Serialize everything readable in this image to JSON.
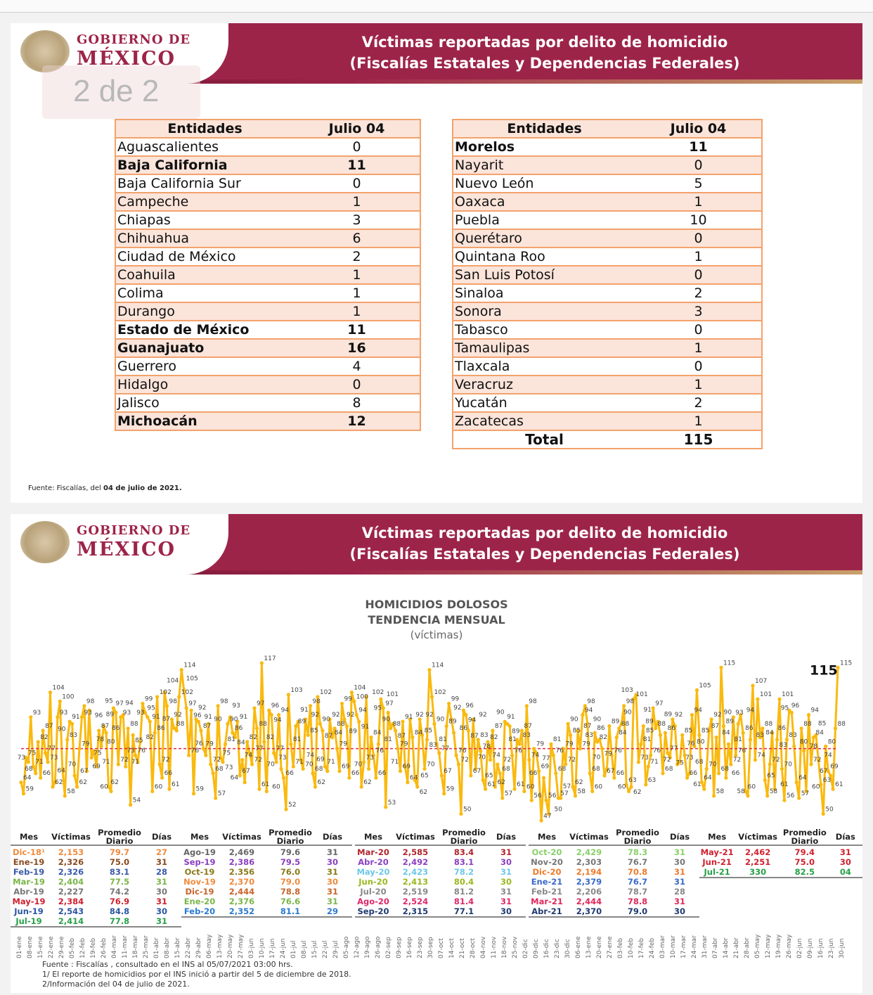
{
  "header": {
    "logo_line1": "GOBIERNO DE",
    "logo_line2": "MÉXICO",
    "title_line1": "Víctimas reportadas por delito de homicidio",
    "title_line2": "(Fiscalías Estatales y Dependencias Federales)"
  },
  "pager": "2 de 2",
  "colors": {
    "brand": "#9d2449",
    "table_border": "#f3a26c",
    "table_fill": "#fbe4da",
    "line": "#f9b90f",
    "mean": "#e0284a"
  },
  "left_table": {
    "headers": [
      "Entidades",
      "Julio 04"
    ],
    "rows": [
      {
        "name": "Aguascalientes",
        "value": "0",
        "bold": false
      },
      {
        "name": "Baja California",
        "value": "11",
        "bold": true
      },
      {
        "name": "Baja California Sur",
        "value": "0",
        "bold": false
      },
      {
        "name": "Campeche",
        "value": "1",
        "bold": false
      },
      {
        "name": "Chiapas",
        "value": "3",
        "bold": false
      },
      {
        "name": "Chihuahua",
        "value": "6",
        "bold": false
      },
      {
        "name": "Ciudad de México",
        "value": "2",
        "bold": false
      },
      {
        "name": "Coahuila",
        "value": "1",
        "bold": false
      },
      {
        "name": "Colima",
        "value": "1",
        "bold": false
      },
      {
        "name": "Durango",
        "value": "1",
        "bold": false
      },
      {
        "name": "Estado de México",
        "value": "11",
        "bold": true
      },
      {
        "name": "Guanajuato",
        "value": "16",
        "bold": true
      },
      {
        "name": "Guerrero",
        "value": "4",
        "bold": false
      },
      {
        "name": "Hidalgo",
        "value": "0",
        "bold": false
      },
      {
        "name": "Jalisco",
        "value": "8",
        "bold": false
      },
      {
        "name": "Michoacán",
        "value": "12",
        "bold": true
      }
    ]
  },
  "right_table": {
    "headers": [
      "Entidades",
      "Julio 04"
    ],
    "rows": [
      {
        "name": "Morelos",
        "value": "11",
        "bold": true
      },
      {
        "name": "Nayarit",
        "value": "0",
        "bold": false
      },
      {
        "name": "Nuevo León",
        "value": "5",
        "bold": false
      },
      {
        "name": "Oaxaca",
        "value": "1",
        "bold": false
      },
      {
        "name": "Puebla",
        "value": "10",
        "bold": false
      },
      {
        "name": "Querétaro",
        "value": "0",
        "bold": false
      },
      {
        "name": "Quintana Roo",
        "value": "1",
        "bold": false
      },
      {
        "name": "San Luis Potosí",
        "value": "0",
        "bold": false
      },
      {
        "name": "Sinaloa",
        "value": "2",
        "bold": false
      },
      {
        "name": "Sonora",
        "value": "3",
        "bold": false
      },
      {
        "name": "Tabasco",
        "value": "0",
        "bold": false
      },
      {
        "name": "Tamaulipas",
        "value": "1",
        "bold": false
      },
      {
        "name": "Tlaxcala",
        "value": "0",
        "bold": false
      },
      {
        "name": "Veracruz",
        "value": "1",
        "bold": false
      },
      {
        "name": "Yucatán",
        "value": "2",
        "bold": false
      },
      {
        "name": "Zacatecas",
        "value": "1",
        "bold": false
      }
    ],
    "total_label": "Total",
    "total_value": "115"
  },
  "fuente1": {
    "prefix": "Fuente: Fiscalías, del ",
    "bold": "04 de julio de 2021."
  },
  "chart_data": {
    "type": "line",
    "title": "HOMICIDIOS DOLOSOS",
    "subtitle": "TENDENCIA MENSUAL",
    "unit": "(víctimas)",
    "ylim": [
      45,
      120
    ],
    "mean_value": 79,
    "last_value_label": "115",
    "grid": false,
    "x_ticks": [
      "01-ene",
      "08-ene",
      "15-ene",
      "22-ene",
      "29-ene",
      "05-feb",
      "12-feb",
      "19-feb",
      "26-feb",
      "04-mar",
      "11-mar",
      "18-mar",
      "25-mar",
      "01-abr",
      "08-abr",
      "15-abr",
      "22-abr",
      "29-abr",
      "06-may",
      "13-may",
      "20-may",
      "27-may",
      "03-jun",
      "10-jun",
      "17-jun",
      "24-jun",
      "01-jul",
      "08-jul",
      "15-jul",
      "22-jul",
      "29-jul",
      "05-ago",
      "12-ago",
      "19-ago",
      "26-ago",
      "02-sep",
      "09-sep",
      "16-sep",
      "23-sep",
      "30-sep",
      "07-oct",
      "14-oct",
      "21-oct",
      "28-oct",
      "04-nov",
      "11-nov",
      "18-nov",
      "25-nov",
      "02-dic",
      "09-dic",
      "16-dic",
      "23-dic",
      "30-dic",
      "06-ene",
      "13-ene",
      "20-ene",
      "27-ene",
      "03-feb",
      "10-feb",
      "17-feb",
      "24-feb",
      "03-mar",
      "10-mar",
      "17-mar",
      "24-mar",
      "31-mar",
      "07-abr",
      "14-abr",
      "21-abr",
      "28-abr",
      "05-may",
      "12-may",
      "19-may",
      "26-may",
      "02-jun",
      "09-jun",
      "16-jun",
      "23-jun",
      "30-jun"
    ],
    "values": [
      64,
      59,
      75,
      73,
      93,
      71,
      68,
      82,
      66,
      87,
      77,
      73,
      104,
      62,
      64,
      93,
      100,
      70,
      58,
      83,
      91,
      90,
      67,
      62,
      79,
      93,
      98,
      69,
      96,
      75,
      78,
      71,
      87,
      80,
      89,
      86,
      62,
      60,
      97,
      95,
      72,
      93,
      94,
      71,
      88,
      54,
      85,
      76,
      73,
      82,
      99,
      95,
      93,
      91,
      60,
      86,
      102,
      72,
      66,
      104,
      98,
      61,
      92,
      88,
      87,
      102,
      114,
      105,
      97,
      76,
      96,
      59,
      92,
      91,
      87,
      79,
      76,
      90,
      72,
      68,
      57,
      98,
      75,
      73,
      81,
      90,
      93,
      86,
      84,
      91,
      67,
      74,
      64,
      82,
      77,
      72,
      97,
      88,
      61,
      117,
      82,
      60,
      96,
      94,
      77,
      73,
      94,
      70,
      66,
      52,
      103,
      81,
      71,
      89,
      91,
      74,
      70,
      92,
      85,
      98,
      68,
      62,
      102,
      90,
      87,
      71,
      69,
      92,
      84,
      88,
      79,
      69,
      99,
      92,
      89,
      66,
      104,
      100,
      94,
      91,
      62,
      73,
      102,
      70,
      84,
      76,
      66,
      81,
      101,
      97,
      53,
      95,
      88,
      90,
      87,
      79,
      69,
      91,
      71,
      64,
      92,
      84,
      65,
      62,
      92,
      85,
      70,
      83,
      114,
      102,
      90,
      81,
      77,
      67,
      59,
      89,
      99,
      92,
      86,
      76,
      72,
      50,
      96,
      94,
      87,
      67,
      92,
      70,
      83,
      78,
      65,
      61,
      82,
      74,
      87,
      62,
      72,
      68,
      57,
      91,
      90,
      89,
      76,
      61,
      83,
      81,
      87,
      60,
      98,
      74,
      56,
      79,
      77,
      69,
      47,
      66,
      56,
      50,
      81,
      76,
      68,
      57,
      57,
      79,
      72,
      90,
      85,
      62,
      58,
      87,
      79,
      94,
      98,
      90,
      68,
      60,
      86,
      82,
      83,
      79,
      67,
      70,
      89,
      76,
      66,
      84,
      88,
      90,
      98,
      63,
      60,
      62,
      101,
      103,
      73,
      81,
      89,
      63,
      71,
      76,
      97,
      88,
      91,
      85,
      68,
      86,
      77,
      75,
      92,
      89,
      72,
      73,
      85,
      76,
      66,
      68,
      94,
      80,
      105,
      85,
      64,
      61,
      70,
      87,
      92,
      58,
      84,
      68,
      115,
      89,
      66,
      81,
      72,
      93,
      76,
      90,
      94,
      86,
      60,
      58,
      83,
      107,
      74,
      101,
      84,
      88,
      65,
      58,
      72,
      86,
      61,
      83,
      101,
      70,
      56,
      83,
      96,
      95,
      80,
      64,
      57,
      88,
      78,
      60,
      94,
      72,
      84,
      85,
      74,
      63,
      50,
      80,
      69,
      67,
      61,
      88,
      115
    ]
  },
  "monthly": {
    "headers": [
      "Mes",
      "Víctimas",
      "Promedio Diario",
      "Días"
    ],
    "groups": [
      [
        [
          "Dic-18¹",
          "2,153",
          "79.7",
          "27",
          "#f08a3c"
        ],
        [
          "Ene-19",
          "2,326",
          "75.0",
          "31",
          "#8a4a1e"
        ],
        [
          "Feb-19",
          "2,326",
          "83.1",
          "28",
          "#3a5ba8"
        ],
        [
          "Mar-19",
          "2,404",
          "77.5",
          "31",
          "#7ab648"
        ],
        [
          "Abr-19",
          "2,227",
          "74.2",
          "30",
          "#777777"
        ],
        [
          "May-19",
          "2,384",
          "76.9",
          "31",
          "#d0202e"
        ],
        [
          "Jun-19",
          "2,543",
          "84.8",
          "30",
          "#2a56a0"
        ],
        [
          "Jul-19",
          "2,414",
          "77.8",
          "31",
          "#27a048"
        ]
      ],
      [
        [
          "Ago-19",
          "2,469",
          "79.6",
          "31",
          "#666666"
        ],
        [
          "Sep-19",
          "2,386",
          "79.5",
          "30",
          "#8a3fc0"
        ],
        [
          "Oct-19",
          "2.356",
          "76.0",
          "31",
          "#8a7a1a"
        ],
        [
          "Nov-19",
          "2,370",
          "79.0",
          "30",
          "#f08a3c"
        ],
        [
          "Dic-19",
          "2,444",
          "78.8",
          "31",
          "#c8642a"
        ],
        [
          "Ene-20",
          "2,376",
          "76.6",
          "31",
          "#7ab648"
        ],
        [
          "Feb-20",
          "2,352",
          "81.1",
          "29",
          "#2a7ad0"
        ]
      ],
      [
        [
          "Mar-20",
          "2,585",
          "83.4",
          "31",
          "#b0242a"
        ],
        [
          "Abr-20",
          "2,492",
          "83.1",
          "30",
          "#8a3fc0"
        ],
        [
          "May-20",
          "2,423",
          "78.2",
          "31",
          "#6cc8e8"
        ],
        [
          "Jun-20",
          "2,413",
          "80.4",
          "30",
          "#9ab820"
        ],
        [
          "Jul-20",
          "2,519",
          "81.2",
          "31",
          "#888888"
        ],
        [
          "Ago-20",
          "2,524",
          "81.4",
          "31",
          "#e0286a"
        ],
        [
          "Sep-20",
          "2,315",
          "77.1",
          "30",
          "#1e3a70"
        ]
      ],
      [
        [
          "Oct-20",
          "2,429",
          "78.3",
          "31",
          "#8ad06a"
        ],
        [
          "Nov-20",
          "2,303",
          "76.7",
          "30",
          "#777777"
        ],
        [
          "Dic-20",
          "2,194",
          "70.8",
          "31",
          "#f07a2a"
        ],
        [
          "Ene-21",
          "2,379",
          "76.7",
          "31",
          "#3a6ac8"
        ],
        [
          "Feb-21",
          "2,206",
          "78.7",
          "28",
          "#888888"
        ],
        [
          "Mar-21",
          "2,444",
          "78.8",
          "31",
          "#e0285a"
        ],
        [
          "Abr-21",
          "2,370",
          "79.0",
          "30",
          "#1e3a70"
        ]
      ],
      [
        [
          "May-21",
          "2,462",
          "79.4",
          "31",
          "#d0202e"
        ],
        [
          "Jun-21",
          "2,251",
          "75.0",
          "30",
          "#d0202e"
        ],
        [
          "Jul-21",
          "330",
          "82.5",
          "04",
          "#27a048"
        ]
      ]
    ]
  },
  "footnotes": [
    "Fuente : Fiscalías , consultado en el INS al 05/07/2021 03:00 hrs.",
    "1/ El reporte de homicidios por el INS inició a partir del 5 de diciembre de 2018.",
    "2/Información del 04 de julio de 2021."
  ]
}
